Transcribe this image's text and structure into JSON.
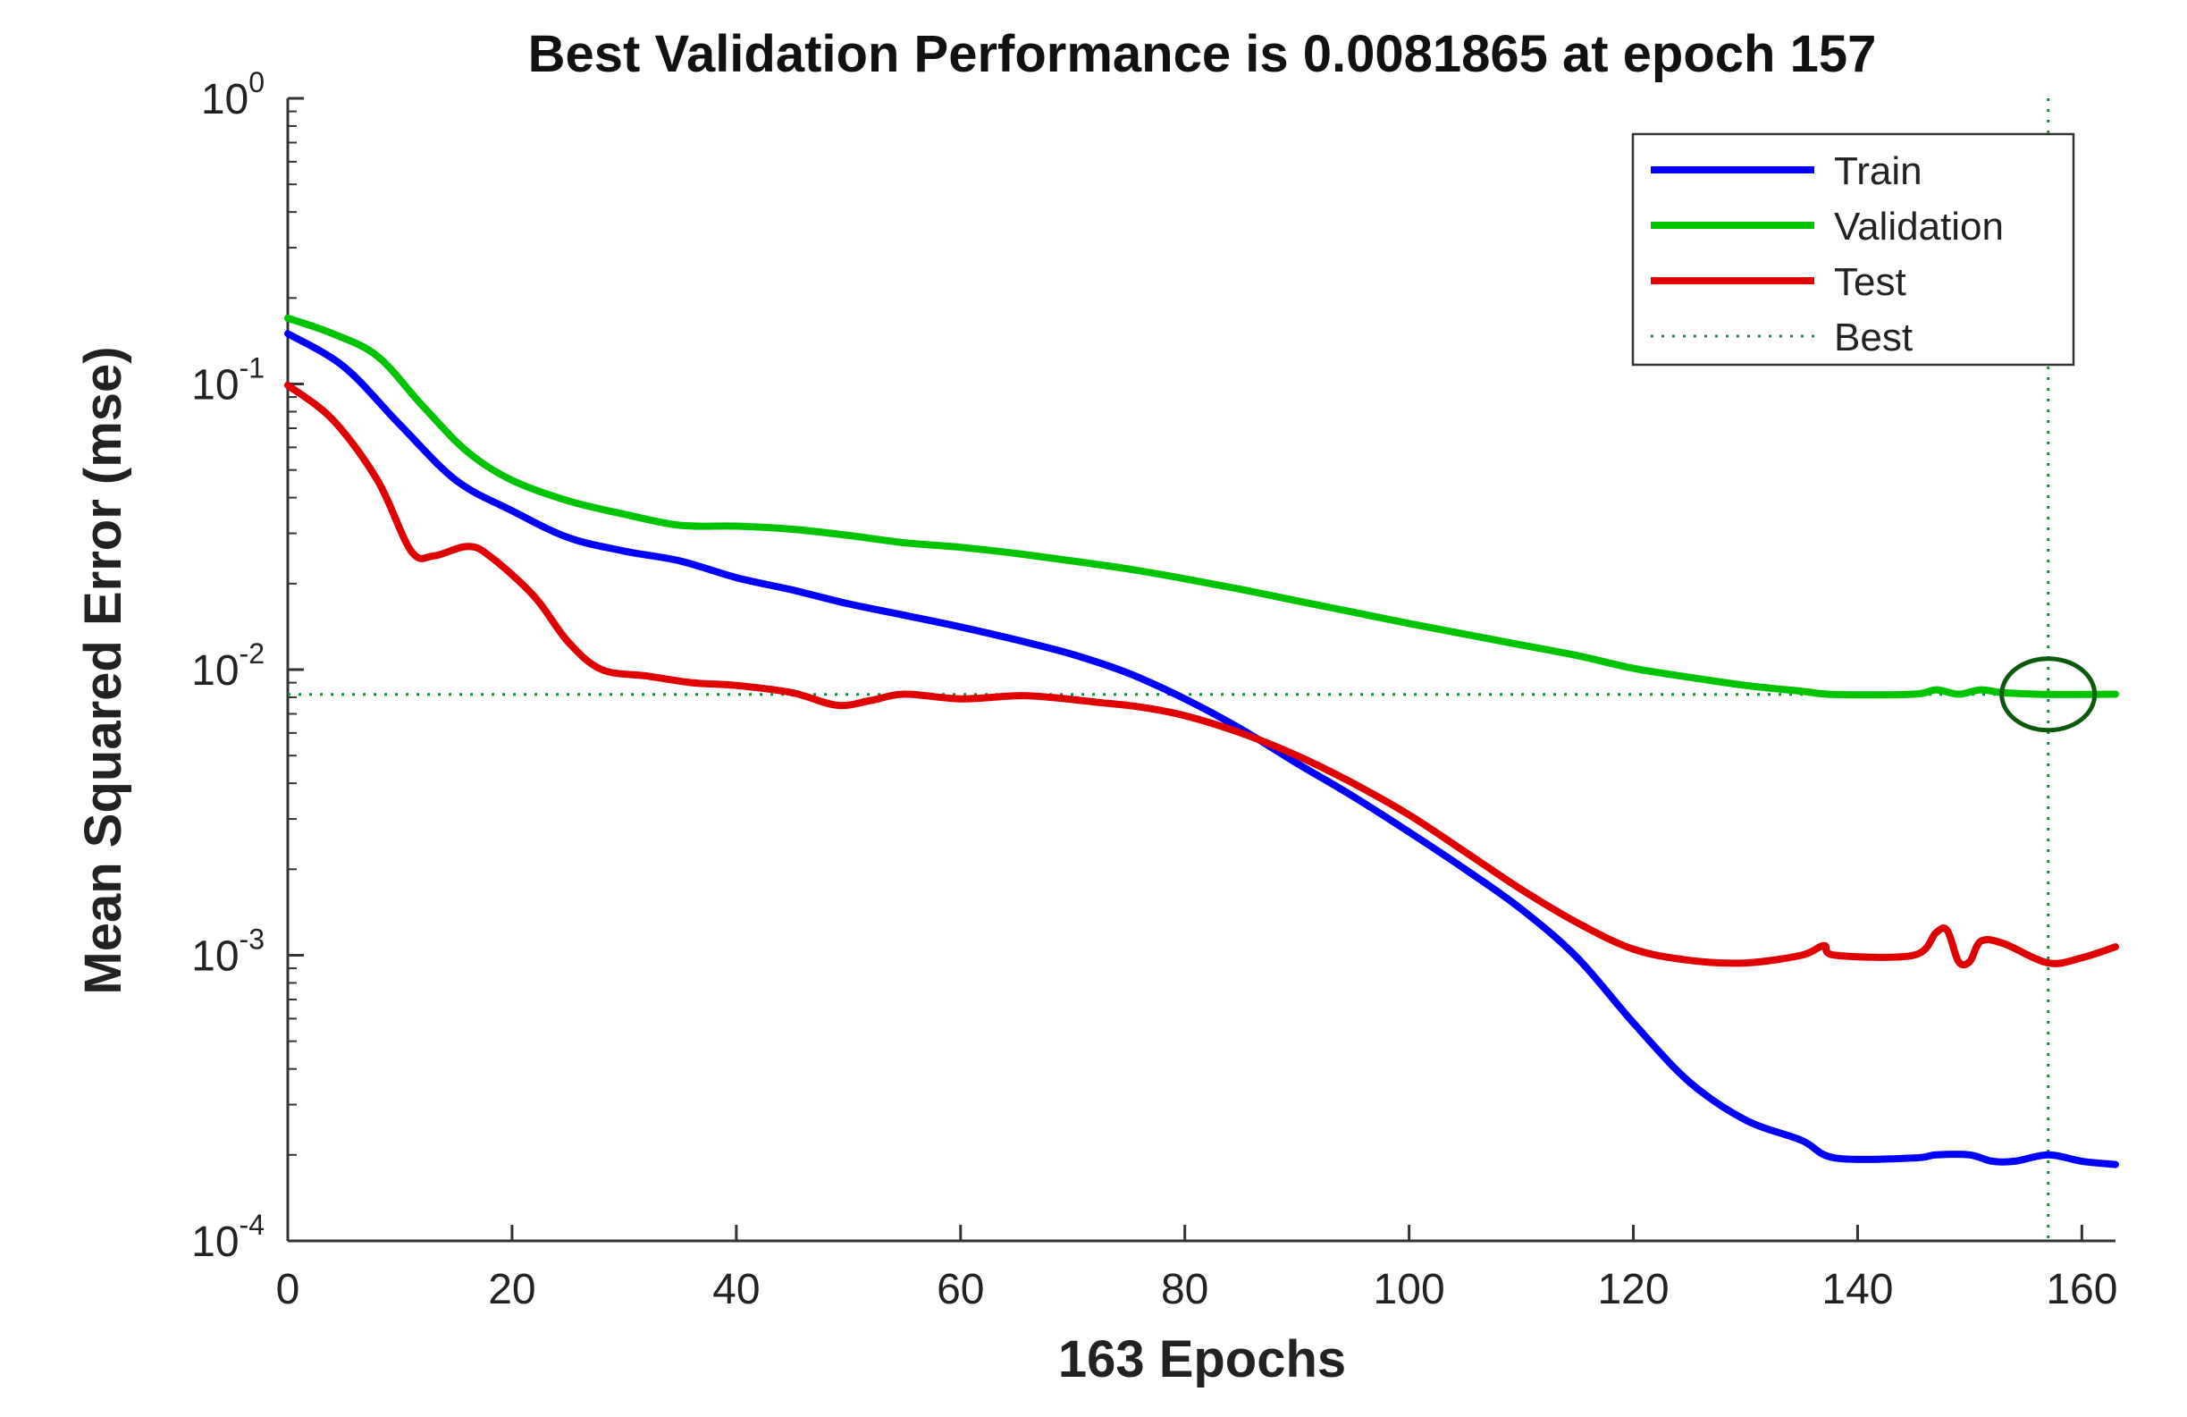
{
  "chart_data": {
    "type": "line",
    "title": "Best Validation Performance is 0.0081865 at epoch 157",
    "xlabel": "163 Epochs",
    "ylabel": "Mean Squared Error  (mse)",
    "xlim": [
      0,
      163
    ],
    "ylim": [
      0.0001,
      1
    ],
    "yscale": "log",
    "grid": false,
    "legend_position": "top-right",
    "x_ticks": [
      "0",
      "20",
      "40",
      "60",
      "80",
      "100",
      "120",
      "140",
      "160"
    ],
    "y_ticks": [
      {
        "base": "10",
        "exp": "0",
        "value": 1
      },
      {
        "base": "10",
        "exp": "-1",
        "value": 0.1
      },
      {
        "base": "10",
        "exp": "-2",
        "value": 0.01
      },
      {
        "base": "10",
        "exp": "-3",
        "value": 0.001
      },
      {
        "base": "10",
        "exp": "-4",
        "value": 0.0001
      }
    ],
    "series": [
      {
        "name": "Train",
        "color": "#0000ff",
        "points": [
          [
            0,
            0.15
          ],
          [
            5,
            0.115
          ],
          [
            10,
            0.072
          ],
          [
            15,
            0.046
          ],
          [
            20,
            0.036
          ],
          [
            25,
            0.029
          ],
          [
            30,
            0.026
          ],
          [
            35,
            0.024
          ],
          [
            40,
            0.021
          ],
          [
            45,
            0.019
          ],
          [
            50,
            0.017
          ],
          [
            55,
            0.0155
          ],
          [
            60,
            0.0141
          ],
          [
            65,
            0.0127
          ],
          [
            70,
            0.0113
          ],
          [
            75,
            0.0097
          ],
          [
            80,
            0.0079
          ],
          [
            85,
            0.0062
          ],
          [
            90,
            0.0047
          ],
          [
            95,
            0.0036
          ],
          [
            100,
            0.0027
          ],
          [
            105,
            0.002
          ],
          [
            110,
            0.00145
          ],
          [
            115,
            0.00098
          ],
          [
            120,
            0.00058
          ],
          [
            125,
            0.00036
          ],
          [
            130,
            0.000265
          ],
          [
            135,
            0.000225
          ],
          [
            138,
            0.000195
          ],
          [
            145,
            0.000195
          ],
          [
            147,
            0.0002
          ],
          [
            150,
            0.0002
          ],
          [
            152,
            0.00019
          ],
          [
            154,
            0.00019
          ],
          [
            157,
            0.0002
          ],
          [
            160,
            0.00019
          ],
          [
            163,
            0.000185
          ]
        ]
      },
      {
        "name": "Validation",
        "color": "#00c400",
        "points": [
          [
            0,
            0.17
          ],
          [
            4,
            0.15
          ],
          [
            8,
            0.125
          ],
          [
            12,
            0.084
          ],
          [
            16,
            0.058
          ],
          [
            20,
            0.046
          ],
          [
            25,
            0.039
          ],
          [
            30,
            0.035
          ],
          [
            35,
            0.032
          ],
          [
            40,
            0.0318
          ],
          [
            45,
            0.031
          ],
          [
            50,
            0.0295
          ],
          [
            55,
            0.0278
          ],
          [
            60,
            0.0268
          ],
          [
            65,
            0.0255
          ],
          [
            70,
            0.024
          ],
          [
            75,
            0.0225
          ],
          [
            80,
            0.0208
          ],
          [
            85,
            0.0191
          ],
          [
            90,
            0.0174
          ],
          [
            95,
            0.0159
          ],
          [
            100,
            0.0145
          ],
          [
            105,
            0.0133
          ],
          [
            110,
            0.0122
          ],
          [
            115,
            0.0112
          ],
          [
            120,
            0.0101
          ],
          [
            125,
            0.0094
          ],
          [
            130,
            0.0088
          ],
          [
            135,
            0.0084
          ],
          [
            138,
            0.00818
          ],
          [
            145,
            0.0082
          ],
          [
            147,
            0.0085
          ],
          [
            149,
            0.0082
          ],
          [
            151,
            0.0085
          ],
          [
            153,
            0.0083
          ],
          [
            157,
            0.0081865
          ],
          [
            163,
            0.0082
          ]
        ]
      },
      {
        "name": "Test",
        "color": "#e00000",
        "points": [
          [
            0,
            0.099
          ],
          [
            4,
            0.075
          ],
          [
            8,
            0.046
          ],
          [
            11,
            0.026
          ],
          [
            13,
            0.025
          ],
          [
            16,
            0.027
          ],
          [
            18,
            0.025
          ],
          [
            22,
            0.018
          ],
          [
            25,
            0.0125
          ],
          [
            28,
            0.01
          ],
          [
            32,
            0.0095
          ],
          [
            36,
            0.009
          ],
          [
            40,
            0.0088
          ],
          [
            45,
            0.0083
          ],
          [
            49,
            0.0075
          ],
          [
            52,
            0.0078
          ],
          [
            55,
            0.0082
          ],
          [
            60,
            0.0079
          ],
          [
            65,
            0.0081
          ],
          [
            68,
            0.008
          ],
          [
            72,
            0.0077
          ],
          [
            76,
            0.0074
          ],
          [
            80,
            0.0069
          ],
          [
            85,
            0.006
          ],
          [
            90,
            0.005
          ],
          [
            95,
            0.004
          ],
          [
            100,
            0.0031
          ],
          [
            105,
            0.0023
          ],
          [
            110,
            0.0017
          ],
          [
            115,
            0.0013
          ],
          [
            120,
            0.00105
          ],
          [
            125,
            0.00096
          ],
          [
            130,
            0.00094
          ],
          [
            135,
            0.001
          ],
          [
            137,
            0.00108
          ],
          [
            138,
            0.001
          ],
          [
            145,
            0.001
          ],
          [
            147,
            0.0012
          ],
          [
            148,
            0.00122
          ],
          [
            149,
            0.00095
          ],
          [
            150,
            0.00095
          ],
          [
            151,
            0.00112
          ],
          [
            153,
            0.0011
          ],
          [
            157,
            0.00094
          ],
          [
            160,
            0.00098
          ],
          [
            163,
            0.00107
          ]
        ]
      }
    ],
    "best": {
      "name": "Best",
      "epoch": 157,
      "value": 0.0081865,
      "color": "#1a8a3a",
      "circle_color": "#0a5a0a"
    }
  }
}
